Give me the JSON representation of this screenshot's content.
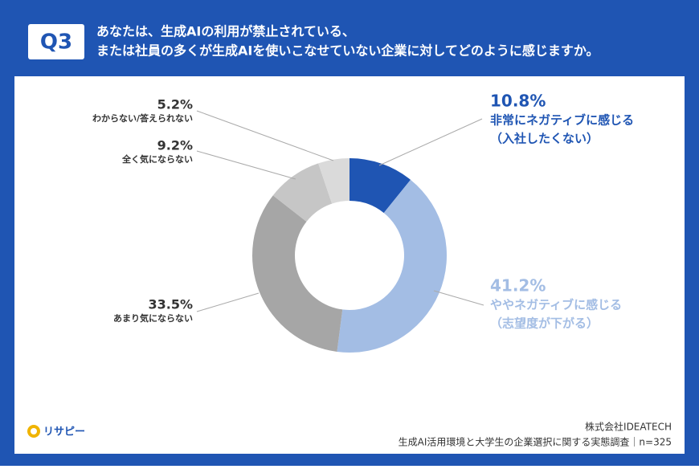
{
  "header": {
    "badge": "Q3",
    "title_lines": [
      "あなたは、生成AIの利用が禁止されている、",
      "または社員の多くが生成AIを使いこなせていない企業に対してどのように感じますか。"
    ]
  },
  "chart_data": {
    "type": "donut",
    "categories": [
      [
        "非常にネガティブに感じる",
        "（入社したくない）"
      ],
      [
        "ややネガティブに感じる",
        "（志望度が下がる）"
      ],
      [
        "あまり気にならない"
      ],
      [
        "全く気にならない"
      ],
      [
        "わからない/答えられない"
      ]
    ],
    "values": [
      10.8,
      41.2,
      33.5,
      9.2,
      5.2
    ],
    "value_labels": [
      "10.8%",
      "41.2%",
      "33.5%",
      "9.2%",
      "5.2%"
    ],
    "colors": [
      "#1f55b3",
      "#a3bde4",
      "#a6a6a6",
      "#c6c6c6",
      "#dadada"
    ]
  },
  "footer": {
    "logo": "リサピー",
    "company": "株式会社IDEATECH",
    "source": "生成AI活用環境と大学生の企業選択に関する実態調査｜n=325"
  }
}
